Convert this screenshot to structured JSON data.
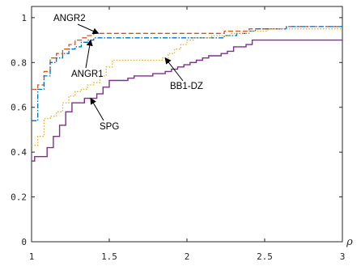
{
  "chart_data": {
    "type": "line",
    "title": "",
    "xlabel": "ρ",
    "ylabel": "",
    "xlim": [
      1,
      3
    ],
    "ylim": [
      0,
      1.05
    ],
    "xticks": [
      1,
      1.5,
      2,
      2.5,
      3
    ],
    "xtick_labels": [
      "1",
      "1.5",
      "2",
      "2.5",
      "3"
    ],
    "yticks": [
      0,
      0.2,
      0.4,
      0.6,
      0.8,
      1
    ],
    "ytick_labels": [
      "0",
      "0.2",
      "0.4",
      "0.6",
      "0.8",
      "1"
    ],
    "grid": false,
    "series": [
      {
        "name": "ANGR2",
        "color": "#d95319",
        "dash": "dashed",
        "x": [
          1,
          1.04,
          1.08,
          1.12,
          1.16,
          1.2,
          1.24,
          1.28,
          1.32,
          1.36,
          1.4,
          1.44,
          1.5,
          2.0,
          2.2,
          2.24,
          2.28,
          2.32,
          2.36,
          2.4,
          2.44,
          2.6,
          2.64,
          3
        ],
        "y": [
          0.68,
          0.7,
          0.76,
          0.82,
          0.84,
          0.86,
          0.88,
          0.9,
          0.91,
          0.92,
          0.93,
          0.93,
          0.93,
          0.93,
          0.93,
          0.94,
          0.94,
          0.94,
          0.94,
          0.95,
          0.95,
          0.95,
          0.96,
          0.96
        ]
      },
      {
        "name": "ANGR1",
        "color": "#0072bd",
        "dash": "dash-dot",
        "x": [
          1,
          1.04,
          1.08,
          1.12,
          1.16,
          1.2,
          1.24,
          1.28,
          1.32,
          1.36,
          1.4,
          1.44,
          1.5,
          2.0,
          2.2,
          2.24,
          2.28,
          2.32,
          2.36,
          2.4,
          2.44,
          2.6,
          2.64,
          3
        ],
        "y": [
          0.54,
          0.68,
          0.74,
          0.8,
          0.82,
          0.84,
          0.86,
          0.87,
          0.89,
          0.9,
          0.91,
          0.91,
          0.91,
          0.91,
          0.91,
          0.92,
          0.92,
          0.93,
          0.93,
          0.94,
          0.95,
          0.95,
          0.96,
          0.96
        ]
      },
      {
        "name": "BB1-DZ",
        "color": "#edb120",
        "dash": "dotted",
        "x": [
          1,
          1.04,
          1.08,
          1.12,
          1.16,
          1.2,
          1.24,
          1.28,
          1.32,
          1.36,
          1.4,
          1.44,
          1.48,
          1.52,
          1.8,
          1.84,
          1.88,
          1.92,
          1.96,
          2.0,
          2.04,
          2.08,
          2.12,
          2.16,
          2.2,
          2.24,
          2.28,
          2.32,
          2.36,
          2.4,
          2.44,
          2.48,
          2.52,
          3
        ],
        "y": [
          0.43,
          0.47,
          0.55,
          0.56,
          0.58,
          0.62,
          0.65,
          0.67,
          0.68,
          0.7,
          0.71,
          0.74,
          0.78,
          0.81,
          0.81,
          0.82,
          0.84,
          0.86,
          0.88,
          0.9,
          0.91,
          0.91,
          0.91,
          0.92,
          0.92,
          0.92,
          0.93,
          0.93,
          0.93,
          0.94,
          0.94,
          0.94,
          0.95,
          0.95
        ]
      },
      {
        "name": "SPG",
        "color": "#7e2f8e",
        "dash": "solid",
        "x": [
          1,
          1.02,
          1.06,
          1.1,
          1.14,
          1.18,
          1.22,
          1.26,
          1.3,
          1.34,
          1.38,
          1.42,
          1.46,
          1.5,
          1.54,
          1.58,
          1.62,
          1.66,
          1.7,
          1.74,
          1.78,
          1.82,
          1.86,
          1.9,
          1.94,
          1.98,
          2.02,
          2.06,
          2.1,
          2.14,
          2.18,
          2.22,
          2.26,
          2.3,
          2.34,
          2.38,
          2.42,
          3
        ],
        "y": [
          0.36,
          0.38,
          0.38,
          0.42,
          0.47,
          0.52,
          0.58,
          0.62,
          0.62,
          0.64,
          0.64,
          0.66,
          0.69,
          0.72,
          0.72,
          0.72,
          0.73,
          0.74,
          0.74,
          0.74,
          0.75,
          0.75,
          0.76,
          0.77,
          0.78,
          0.79,
          0.8,
          0.81,
          0.82,
          0.83,
          0.83,
          0.84,
          0.85,
          0.87,
          0.87,
          0.88,
          0.9,
          0.9
        ]
      }
    ],
    "annotations": [
      {
        "text": "ANGR2",
        "series": "ANGR2",
        "arrow_to": [
          1.43,
          0.93
        ]
      },
      {
        "text": "ANGR1",
        "series": "ANGR1",
        "arrow_to": [
          1.38,
          0.9
        ]
      },
      {
        "text": "BB1-DZ",
        "series": "BB1-DZ",
        "arrow_to": [
          1.86,
          0.82
        ]
      },
      {
        "text": "SPG",
        "series": "SPG",
        "arrow_to": [
          1.38,
          0.64
        ]
      }
    ]
  }
}
